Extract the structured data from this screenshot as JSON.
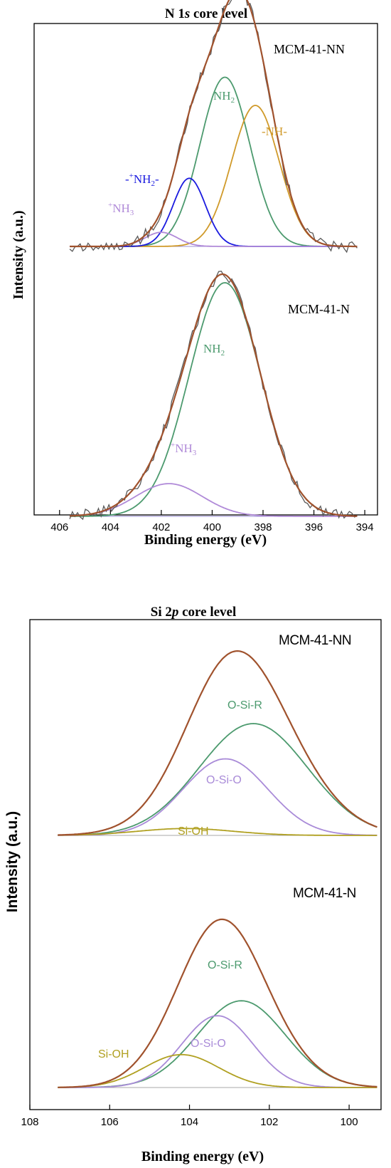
{
  "chart_data": [
    {
      "type": "line",
      "title": "N 1s core level",
      "title_parts": {
        "pre": "N 1",
        "em": "s",
        "post": " core level"
      },
      "xlabel": "Binding energy (eV)",
      "ylabel": "Intensity (a.u.)",
      "xlim": [
        407,
        393.5
      ],
      "x_reversed": true,
      "xticks": [
        406,
        404,
        402,
        400,
        398,
        396,
        394
      ],
      "grid": false,
      "colors": {
        "raw": "#595959",
        "envelope": "#a0522d",
        "nh2": "#4c9a6e",
        "nh": "#d09a2a",
        "protonated_nh2": "#1a1adf",
        "nh3": "#b08ad8",
        "baseline": "#9b8fd6"
      },
      "samples": [
        {
          "name": "MCM-41-NN",
          "baseline": 0.0,
          "components": [
            {
              "label": "NH2",
              "center": 399.5,
              "fwhm": 2.3,
              "height": 0.72,
              "color_key": "nh2"
            },
            {
              "label": "-NH-",
              "center": 398.3,
              "fwhm": 2.2,
              "height": 0.6,
              "color_key": "nh"
            },
            {
              "label": "-+NH2-",
              "center": 400.9,
              "fwhm": 1.5,
              "height": 0.29,
              "color_key": "protonated_nh2"
            },
            {
              "label": "+NH3",
              "center": 402.0,
              "fwhm": 1.5,
              "height": 0.06,
              "color_key": "nh3"
            }
          ]
        },
        {
          "name": "MCM-41-N",
          "baseline": 0.0,
          "components": [
            {
              "label": "NH2",
              "center": 399.5,
              "fwhm": 3.3,
              "height": 1.0,
              "color_key": "nh2"
            },
            {
              "label": "+NH3",
              "center": 401.7,
              "fwhm": 3.1,
              "height": 0.14,
              "color_key": "nh3"
            }
          ]
        }
      ],
      "annotations": {
        "top_nh2": {
          "text": "NH",
          "sub": "2"
        },
        "top_nh": {
          "text": "-NH-"
        },
        "top_pnh2": {
          "pre": "-",
          "sup": "+",
          "text": "NH",
          "sub": "2",
          "post": "-"
        },
        "top_nh3": {
          "sup": "+",
          "text": "NH",
          "sub": "3"
        },
        "bottom_nh2": {
          "text": "NH",
          "sub": "2"
        },
        "bottom_nh3": {
          "sup": "+",
          "text": "NH",
          "sub": "3"
        }
      }
    },
    {
      "type": "line",
      "title": "Si 2p core level",
      "title_parts": {
        "pre": "Si 2",
        "em": "p",
        "post": " core level"
      },
      "xlabel": "Binding energy (eV)",
      "ylabel": "Intensity (a.u.)",
      "xlim": [
        108,
        99.2
      ],
      "x_reversed": true,
      "xticks": [
        108,
        106,
        104,
        102,
        100
      ],
      "grid": false,
      "colors": {
        "envelope": "#a0522d",
        "osir": "#4c9a6e",
        "osio": "#a98bd8",
        "sioh": "#b0a020",
        "baseline": "#aaaaaa"
      },
      "samples": [
        {
          "name": "MCM-41-NN",
          "components": [
            {
              "label": "O-Si-R",
              "center": 102.4,
              "fwhm": 3.2,
              "height": 0.73,
              "color_key": "osir"
            },
            {
              "label": "O-Si-O",
              "center": 103.1,
              "fwhm": 2.5,
              "height": 0.5,
              "color_key": "osio"
            },
            {
              "label": "Si-OH",
              "center": 104.1,
              "fwhm": 2.8,
              "height": 0.045,
              "color_key": "sioh"
            }
          ]
        },
        {
          "name": "MCM-41-N",
          "components": [
            {
              "label": "O-Si-R",
              "center": 102.7,
              "fwhm": 2.6,
              "height": 0.58,
              "color_key": "osir"
            },
            {
              "label": "O-Si-O",
              "center": 103.3,
              "fwhm": 2.1,
              "height": 0.48,
              "color_key": "osio"
            },
            {
              "label": "Si-OH",
              "center": 104.2,
              "fwhm": 2.2,
              "height": 0.22,
              "color_key": "sioh"
            }
          ]
        }
      ],
      "annotations": {
        "top_osir": "O-Si-R",
        "top_osio": "O-Si-O",
        "top_sioh": "Si-OH",
        "bottom_osir": "O-Si-R",
        "bottom_osio": "O-Si-O",
        "bottom_sioh": "Si-OH"
      }
    }
  ]
}
